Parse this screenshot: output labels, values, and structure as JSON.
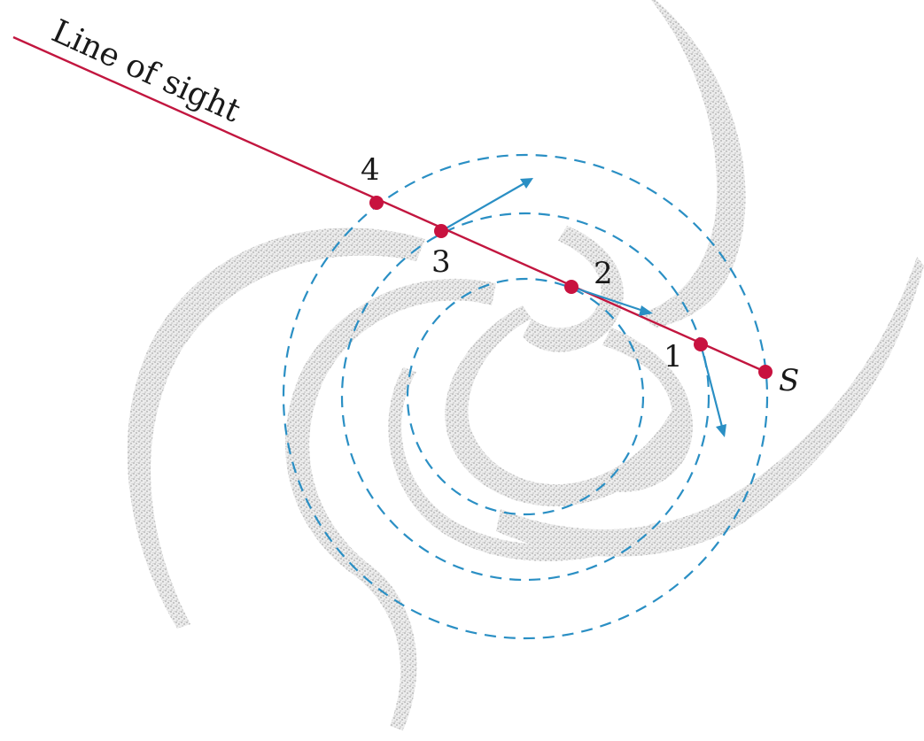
{
  "diagram": {
    "sight_line_label": "Line of sight",
    "point_labels": {
      "p1": "1",
      "p2": "2",
      "p3": "3",
      "p4": "4",
      "sun": "S"
    }
  },
  "colors": {
    "line_of_sight": "#c2163f",
    "points": "#c8123f",
    "orbits_and_velocity": "#2a8fc4",
    "spiral_arms": "#b8b8b8"
  }
}
